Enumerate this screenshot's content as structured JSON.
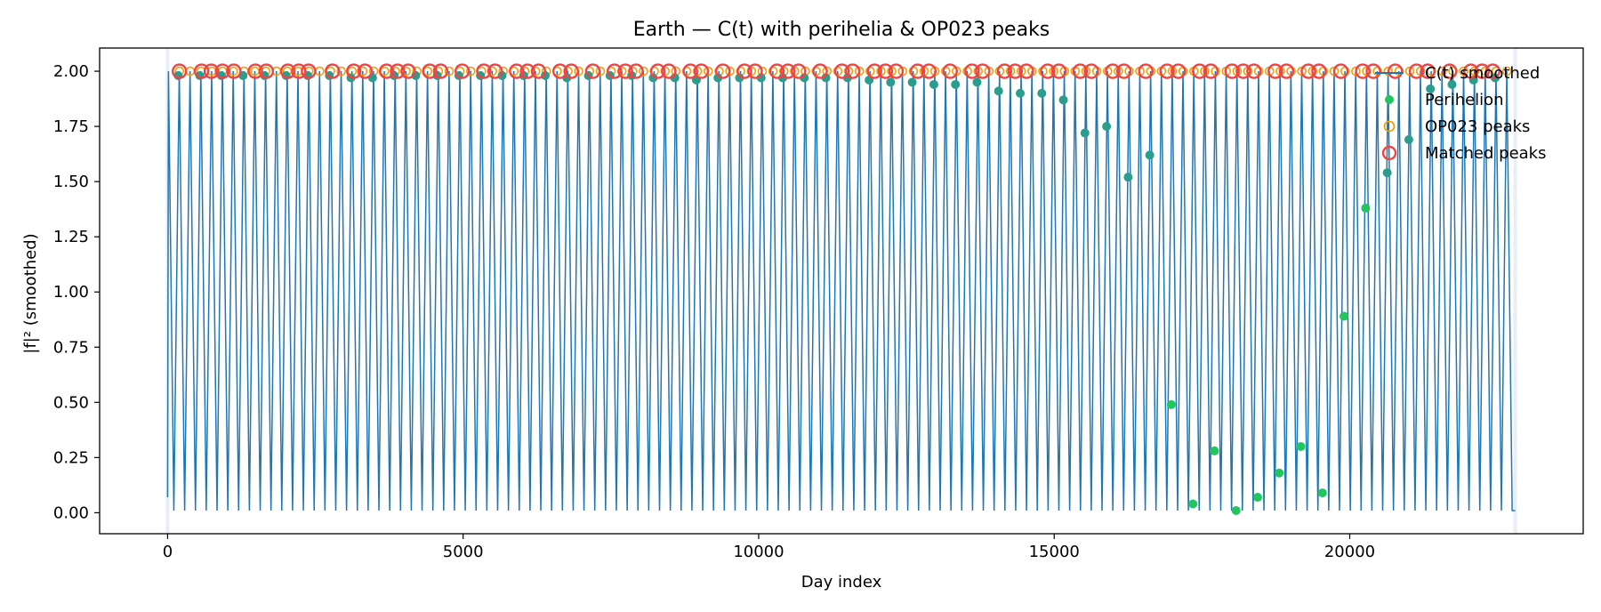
{
  "colors": {
    "line": "#1f77b4",
    "perihelion": "#22c55e",
    "perihelion_overlap": "#2a9d8f",
    "op_peak": "#f59e0b",
    "matched_peak": "#ef4444",
    "axes": "#000000"
  },
  "chart_data": {
    "type": "line",
    "title": "Earth — C(t) with perihelia & OP023 peaks",
    "xlabel": "Day index",
    "ylabel": "|f|² (smoothed)",
    "xlim": [
      -1150,
      23950
    ],
    "ylim": [
      -0.095,
      2.105
    ],
    "x_ticks": [
      0,
      5000,
      10000,
      15000,
      20000
    ],
    "x_tick_labels": [
      "0",
      "5000",
      "10000",
      "15000",
      "20000"
    ],
    "y_ticks": [
      0.0,
      0.25,
      0.5,
      0.75,
      1.0,
      1.25,
      1.5,
      1.75,
      2.0
    ],
    "y_tick_labels": [
      "0.00",
      "0.25",
      "0.50",
      "0.75",
      "1.00",
      "1.25",
      "1.50",
      "1.75",
      "2.00"
    ],
    "grid": false,
    "legend_position": "top-right",
    "series": [
      {
        "name": "C(t) smoothed",
        "kind": "oscillation",
        "x_start": 0,
        "x_end": 22800,
        "period_days": 182.6,
        "min": 0.01,
        "max": 2.0,
        "start_value": 0.07
      },
      {
        "name": "Perihelion",
        "kind": "scatter",
        "x": [
          180,
          545,
          910,
          1276,
          1641,
          2006,
          2371,
          2737,
          3102,
          3467,
          3832,
          4198,
          4563,
          4928,
          5293,
          5659,
          6024,
          6389,
          6754,
          7120,
          7485,
          7850,
          8215,
          8581,
          8946,
          9311,
          9676,
          10042,
          10407,
          10772,
          11137,
          11503,
          11868,
          12233,
          12598,
          12964,
          13329,
          13694,
          14059,
          14425,
          14790,
          15155,
          15520,
          15886,
          16251,
          16616,
          16981,
          17347,
          17712,
          18077,
          18442,
          18808,
          19173,
          19538,
          19903,
          20269,
          20634,
          20999,
          21364,
          21730,
          22095,
          22460
        ],
        "y": [
          1.98,
          1.98,
          1.98,
          1.98,
          1.98,
          1.98,
          1.98,
          1.98,
          1.97,
          1.97,
          1.98,
          1.98,
          1.98,
          1.98,
          1.98,
          1.98,
          1.98,
          1.98,
          1.97,
          1.98,
          1.98,
          1.98,
          1.97,
          1.97,
          1.96,
          1.97,
          1.97,
          1.97,
          1.97,
          1.97,
          1.97,
          1.97,
          1.96,
          1.95,
          1.95,
          1.94,
          1.94,
          1.95,
          1.91,
          1.9,
          1.9,
          1.87,
          1.72,
          1.75,
          1.52,
          1.62,
          0.49,
          0.04,
          0.28,
          0.01,
          0.07,
          0.18,
          0.3,
          0.09,
          0.89,
          1.38,
          1.54,
          1.69,
          1.92,
          1.94,
          1.96,
          1.97
        ]
      },
      {
        "name": "OP023 peaks",
        "kind": "scatter_hollow",
        "x_start": 200,
        "count": 124,
        "spacing": 182.6,
        "y": 2.0
      },
      {
        "name": "Matched peaks",
        "kind": "scatter_hollow",
        "x": [
          200,
          575,
          740,
          930,
          1120,
          1485,
          1670,
          2035,
          2220,
          2385,
          2790,
          3150,
          3340,
          3705,
          3890,
          4070,
          4435,
          4620,
          4985,
          5350,
          5540,
          5905,
          6090,
          6275,
          6640,
          6830,
          7195,
          7560,
          7745,
          7925,
          8295,
          8480,
          8845,
          9030,
          9395,
          9760,
          9940,
          10310,
          10495,
          10675,
          11040,
          11410,
          11590,
          11960,
          12145,
          12325,
          12690,
          12880,
          13240,
          13610,
          13790,
          14160,
          14340,
          14530,
          14890,
          15080,
          15440,
          15630,
          15990,
          16180,
          16550,
          16910,
          17100,
          17460,
          17650,
          18010,
          18200,
          18380,
          18740,
          18930,
          19300,
          19480,
          19850,
          20220,
          20400,
          20770,
          21130,
          21320,
          21690,
          22050,
          22240,
          22420
        ],
        "y": 2.0
      }
    ]
  }
}
